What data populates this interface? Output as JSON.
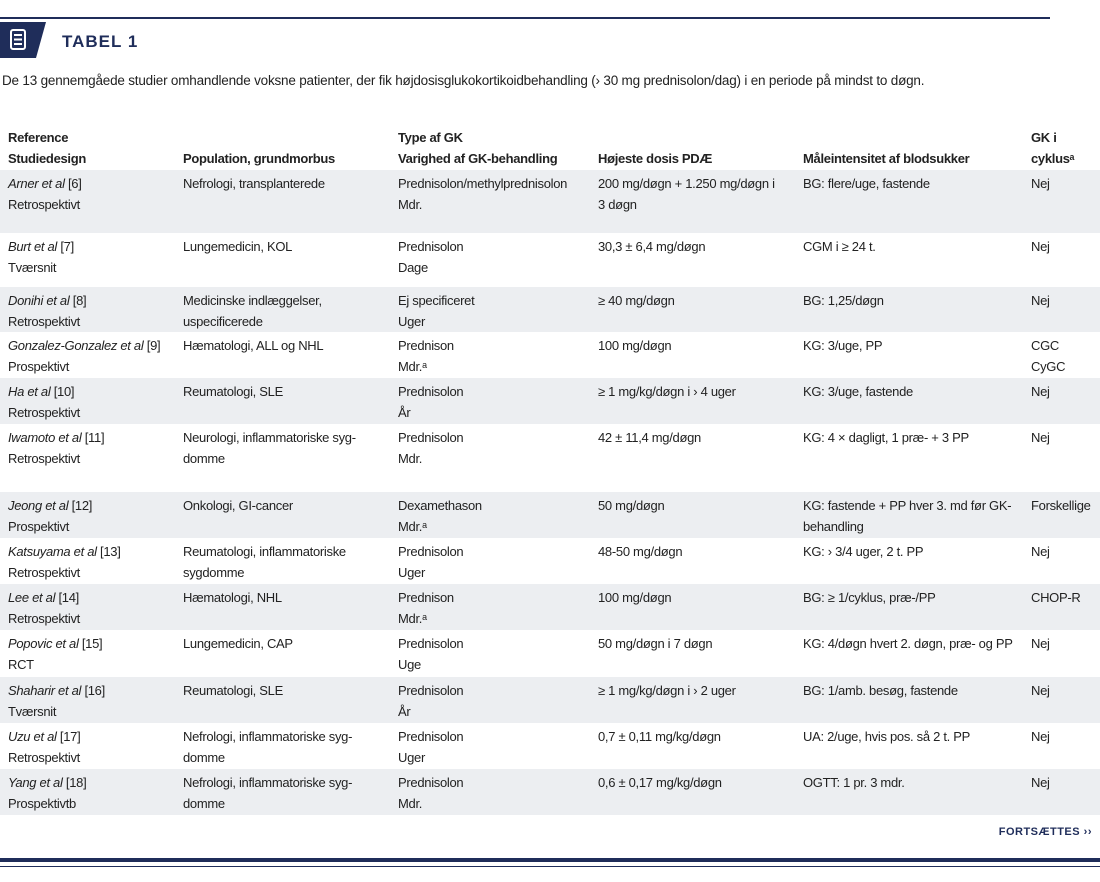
{
  "header": {
    "label": "TABEL 1"
  },
  "caption": "De 13 gennemgåede studier omhandlende voksne patienter, der fik højdosisglukokortikoidbehandling (› 30 mg prednisolon/dag) i en periode på mindst to døgn.",
  "table": {
    "headers": [
      [
        "Reference",
        "Studiedesign"
      ],
      [
        "Population, grundmorbus"
      ],
      [
        "Type af GK",
        "Varighed af GK-behandling"
      ],
      [
        "Højeste dosis PDÆ"
      ],
      [
        "Måleintensitet af blodsukker"
      ],
      [
        "GK i",
        "cyklusᵃ"
      ]
    ],
    "rows": [
      [
        {
          "author": "Arner et al",
          "ref": "[6]",
          "design": "Retrospektivt"
        },
        [
          "Nefrologi, transplanterede"
        ],
        [
          "Prednisolon/methylprednisolon",
          "Mdr."
        ],
        [
          "200 mg/døgn + 1.250 mg/døgn i",
          "3 døgn"
        ],
        [
          "BG:  flere/uge, fastende"
        ],
        [
          "Nej"
        ]
      ],
      [
        {
          "author": "Burt et al",
          "ref": "[7]",
          "design": "Tværsnit"
        },
        [
          "Lungemedicin, KOL"
        ],
        [
          "Prednisolon",
          "Dage"
        ],
        [
          "30,3 ± 6,4 mg/døgn"
        ],
        [
          "CGM i ≥ 24 t."
        ],
        [
          "Nej"
        ]
      ],
      [
        {
          "author": "Donihi et al",
          "ref": "[8]",
          "design": "Retrospektivt"
        },
        [
          "Medicinske indlæggelser,",
          "uspecificerede"
        ],
        [
          "Ej specificeret",
          "Uger"
        ],
        [
          "≥ 40 mg/døgn"
        ],
        [
          "BG: 1,25/døgn"
        ],
        [
          "Nej"
        ]
      ],
      [
        {
          "author": "Gonzalez-Gonzalez et al",
          "ref": "[9]",
          "design": "Prospektivt"
        },
        [
          "Hæmatologi, ALL og NHL"
        ],
        [
          "Prednison",
          "Mdr.ᵃ"
        ],
        [
          "100 mg/døgn"
        ],
        [
          "KG: 3/uge, PP"
        ],
        [
          "CGC",
          "CyGC"
        ]
      ],
      [
        {
          "author": "Ha et al",
          "ref": "[10]",
          "design": "Retrospektivt"
        },
        [
          "Reumatologi, SLE"
        ],
        [
          "Prednisolon",
          "År"
        ],
        [
          "≥ 1 mg/kg/døgn i › 4 uger"
        ],
        [
          "KG: 3/uge, fastende"
        ],
        [
          "Nej"
        ]
      ],
      [
        {
          "author": "Iwamoto et al",
          "ref": "[11]",
          "design": "Retrospektivt"
        },
        [
          "Neurologi, inflammatoriske syg-",
          "domme"
        ],
        [
          "Prednisolon",
          "Mdr."
        ],
        [
          "42 ± 11,4 mg/døgn"
        ],
        [
          "KG: 4 × dagligt, 1 præ- + 3 PP"
        ],
        [
          "Nej"
        ]
      ],
      [
        {
          "author": "Jeong et al",
          "ref": "[12]",
          "design": "Prospektivt"
        },
        [
          "Onkologi, GI-cancer"
        ],
        [
          "Dexamethason",
          "Mdr.ᵃ"
        ],
        [
          "50 mg/døgn"
        ],
        [
          "KG: fastende + PP hver 3. md før GK-",
          "behandling"
        ],
        [
          "Forskellige"
        ]
      ],
      [
        {
          "author": "Katsuyama et al",
          "ref": "[13]",
          "design": "Retrospektivt"
        },
        [
          "Reumatologi, inflammatoriske",
          "sygdomme"
        ],
        [
          "Prednisolon",
          "Uger"
        ],
        [
          "48-50 mg/døgn"
        ],
        [
          "KG: › 3/4 uger, 2 t. PP"
        ],
        [
          "Nej"
        ]
      ],
      [
        {
          "author": "Lee et al",
          "ref": "[14]",
          "design": "Retrospektivt"
        },
        [
          "Hæmatologi, NHL"
        ],
        [
          "Prednison",
          "Mdr.ᵃ"
        ],
        [
          "100 mg/døgn"
        ],
        [
          "BG: ≥ 1/cyklus, præ-/PP"
        ],
        [
          "CHOP-R"
        ]
      ],
      [
        {
          "author": "Popovic et al",
          "ref": "[15]",
          "design": "RCT"
        },
        [
          "Lungemedicin, CAP"
        ],
        [
          "Prednisolon",
          "Uge"
        ],
        [
          "50 mg/døgn i 7 døgn"
        ],
        [
          "KG: 4/døgn hvert 2. døgn, præ- og PP"
        ],
        [
          "Nej"
        ]
      ],
      [
        {
          "author": "Shaharir et al",
          "ref": "[16]",
          "design": "Tværsnit"
        },
        [
          "Reumatologi, SLE"
        ],
        [
          "Prednisolon",
          "År"
        ],
        [
          "≥ 1 mg/kg/døgn i › 2 uger"
        ],
        [
          "BG: 1/amb. besøg, fastende"
        ],
        [
          "Nej"
        ]
      ],
      [
        {
          "author": "Uzu et al",
          "ref": "[17]",
          "design": "Retrospektivt"
        },
        [
          "Nefrologi, inflammatoriske syg-",
          "domme"
        ],
        [
          "Prednisolon",
          "Uger"
        ],
        [
          "0,7 ± 0,11 mg/kg/døgn"
        ],
        [
          "UA: 2/uge, hvis pos. så 2 t. PP"
        ],
        [
          "Nej"
        ]
      ],
      [
        {
          "author": "Yang et al",
          "ref": "[18]",
          "design": "Prospektivtb"
        },
        [
          "Nefrologi, inflammatoriske syg-",
          "domme"
        ],
        [
          "Prednisolon",
          "Mdr."
        ],
        [
          "0,6 ± 0,17 mg/kg/døgn"
        ],
        [
          "OGTT: 1 pr. 3 mdr."
        ],
        [
          "Nej"
        ]
      ]
    ]
  },
  "footer": {
    "continue": "FORTSÆTTES ››"
  }
}
